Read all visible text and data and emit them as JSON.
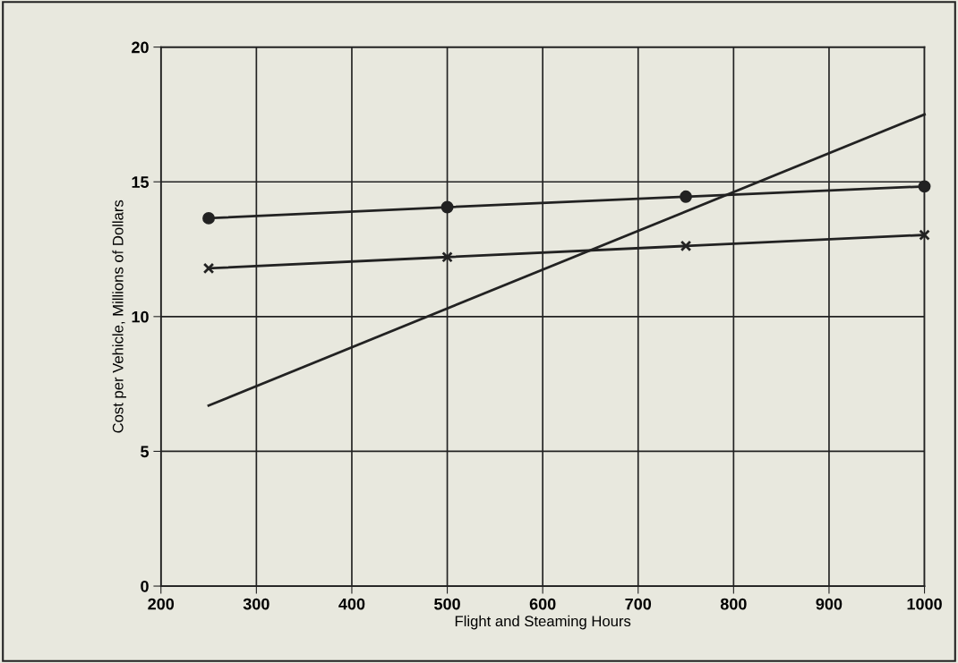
{
  "chart_data": {
    "type": "line",
    "xlabel": "Flight and Steaming Hours",
    "ylabel": "Cost per Vehicle, Millions of Dollars",
    "x": [
      250,
      500,
      750,
      1000
    ],
    "series": [
      {
        "color": "#222222",
        "values": [
          13.65,
          14.06,
          14.45,
          14.83
        ],
        "marker": "circle"
      },
      {
        "color": "#222222",
        "values": [
          11.79,
          12.21,
          12.62,
          13.03
        ],
        "marker": "cross"
      },
      {
        "color": "#222222",
        "x": [
          250,
          1000
        ],
        "values": [
          6.7,
          17.5
        ],
        "marker": "none"
      }
    ],
    "xlim": [
      200,
      1000
    ],
    "xticks": [
      200,
      300,
      400,
      500,
      600,
      700,
      800,
      900,
      1000
    ],
    "ylim": [
      0,
      20
    ],
    "yticks": [
      0,
      5,
      10,
      15,
      20
    ],
    "grid": true,
    "line_style": "solid"
  }
}
